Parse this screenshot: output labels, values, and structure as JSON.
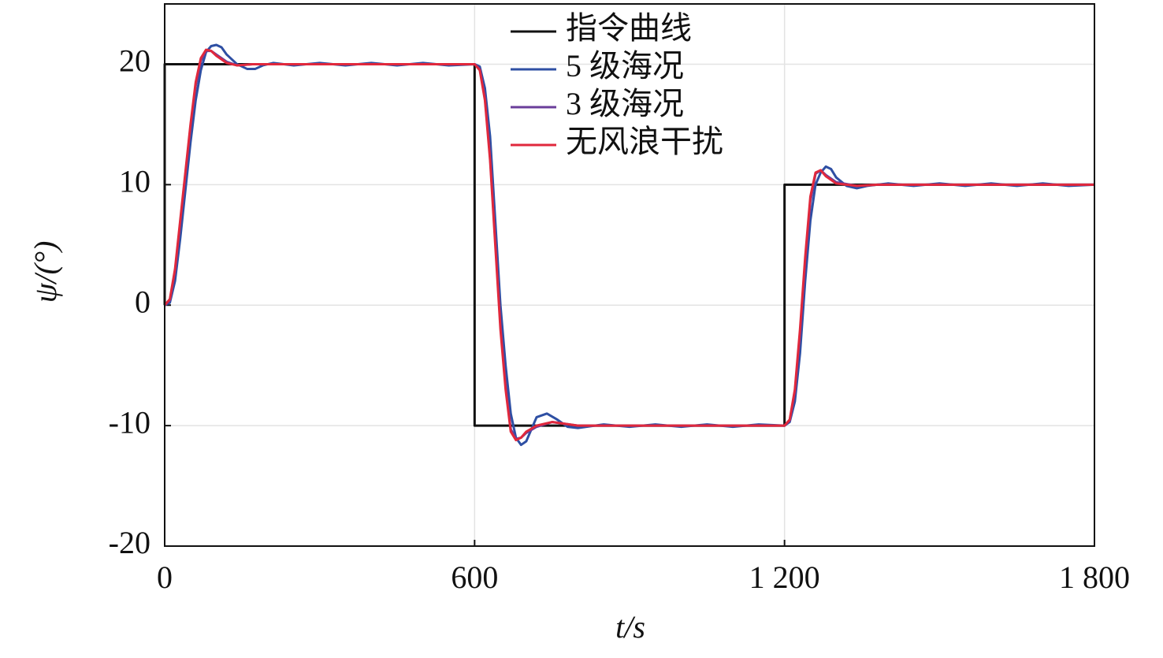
{
  "chart_data": {
    "type": "line",
    "x_label": "t/s",
    "y_label": "ψ/(°)",
    "xlim": [
      0,
      1800
    ],
    "ylim": [
      -20,
      25
    ],
    "xticks": [
      0,
      600,
      {
        "value": 1200,
        "label": "1 200"
      },
      {
        "value": 1800,
        "label": "1 800"
      }
    ],
    "yticks": [
      -20,
      -10,
      0,
      10,
      20
    ],
    "grid": true,
    "legend": "top",
    "series": [
      {
        "name": "指令曲线",
        "color": "#111111",
        "x": [
          0,
          0,
          600,
          600,
          1200,
          1200,
          1800
        ],
        "values": [
          0,
          20,
          20,
          -10,
          -10,
          10,
          10
        ]
      },
      {
        "name": "5 级海况",
        "color": "#2e4fa3",
        "x": [
          0,
          10,
          20,
          30,
          40,
          50,
          60,
          70,
          80,
          90,
          100,
          110,
          120,
          140,
          160,
          175,
          190,
          210,
          250,
          300,
          350,
          400,
          450,
          500,
          550,
          600,
          610,
          620,
          630,
          640,
          650,
          660,
          670,
          680,
          690,
          700,
          710,
          720,
          740,
          760,
          780,
          800,
          850,
          900,
          950,
          1000,
          1050,
          1100,
          1150,
          1200,
          1210,
          1220,
          1230,
          1240,
          1250,
          1260,
          1270,
          1280,
          1290,
          1300,
          1320,
          1340,
          1360,
          1400,
          1450,
          1500,
          1550,
          1600,
          1650,
          1700,
          1750,
          1800
        ],
        "values": [
          0,
          0.2,
          2,
          5.5,
          9.5,
          13.5,
          17,
          19.5,
          21,
          21.5,
          21.6,
          21.4,
          20.8,
          20,
          19.6,
          19.6,
          19.9,
          20.1,
          19.9,
          20.1,
          19.9,
          20.1,
          19.9,
          20.1,
          19.9,
          20,
          19.8,
          18,
          14,
          7,
          0,
          -5,
          -9,
          -11,
          -11.6,
          -11.3,
          -10.3,
          -9.3,
          -9,
          -9.5,
          -10.1,
          -10.2,
          -9.9,
          -10.1,
          -9.9,
          -10.1,
          -9.9,
          -10.1,
          -9.9,
          -10,
          -9.7,
          -8,
          -4,
          2,
          7,
          10,
          11,
          11.5,
          11.3,
          10.6,
          9.9,
          9.7,
          9.9,
          10.1,
          9.9,
          10.1,
          9.9,
          10.1,
          9.9,
          10.1,
          9.9,
          10
        ]
      },
      {
        "name": "3 级海况",
        "color": "#6a3d9a",
        "x": [
          0,
          10,
          20,
          30,
          40,
          50,
          60,
          70,
          80,
          90,
          100,
          120,
          140,
          170,
          600,
          610,
          620,
          630,
          640,
          650,
          660,
          670,
          680,
          690,
          700,
          720,
          750,
          800,
          1200,
          1210,
          1220,
          1230,
          1240,
          1250,
          1260,
          1270,
          1280,
          1300,
          1340,
          1380,
          1800
        ],
        "values": [
          0,
          0.4,
          2.8,
          6.8,
          10.8,
          14.8,
          18.2,
          20.3,
          21.1,
          21.1,
          20.8,
          20.2,
          19.9,
          20,
          20,
          19.6,
          17.2,
          12.3,
          5.4,
          -1.6,
          -6.7,
          -10.3,
          -11.1,
          -11,
          -10.6,
          -10.1,
          -9.7,
          -10,
          -10,
          -9.6,
          -7.2,
          -2.4,
          3.6,
          8.6,
          10.9,
          11.2,
          10.8,
          10.2,
          9.9,
          10,
          10
        ]
      },
      {
        "name": "无风浪干扰",
        "color": "#e0283c",
        "x": [
          0,
          10,
          20,
          30,
          40,
          50,
          60,
          70,
          80,
          90,
          100,
          120,
          140,
          170,
          600,
          610,
          620,
          630,
          640,
          650,
          660,
          670,
          680,
          690,
          700,
          720,
          750,
          800,
          1200,
          1210,
          1220,
          1230,
          1240,
          1250,
          1260,
          1270,
          1280,
          1300,
          1340,
          1380,
          1800
        ],
        "values": [
          0,
          0.5,
          3,
          7,
          11,
          15,
          18.5,
          20.5,
          21.2,
          21.1,
          20.7,
          20.1,
          19.9,
          20,
          20,
          19.5,
          17,
          12,
          5,
          -2,
          -7,
          -10.5,
          -11.2,
          -11,
          -10.5,
          -10,
          -9.7,
          -10,
          -10,
          -9.5,
          -7,
          -2,
          4,
          9,
          11,
          11.2,
          10.7,
          10.1,
          9.9,
          10,
          10
        ]
      }
    ]
  }
}
